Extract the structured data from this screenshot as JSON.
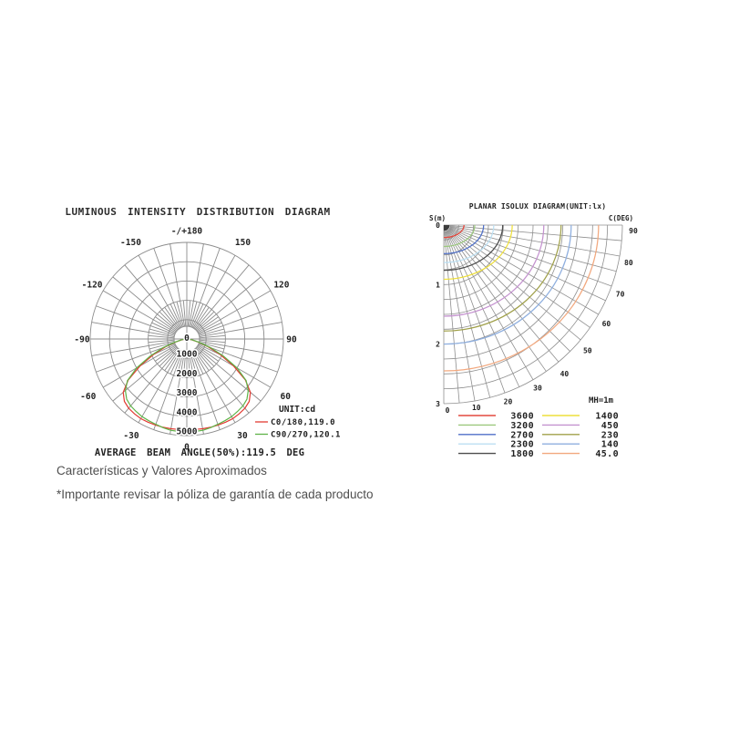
{
  "chart_data": [
    {
      "type": "polar-intensity",
      "title": "LUMINOUS INTENSITY DISTRIBUTION DIAGRAM",
      "unit_label": "UNIT:cd",
      "footer": "AVERAGE BEAM ANGLE(50%):119.5 DEG",
      "center_label": "0",
      "grid_color": "#8c8c8c",
      "ring_values": [
        1000,
        2000,
        3000,
        4000,
        5000
      ],
      "angle_step_deg": 10,
      "fine_ray_step_deg": 5,
      "angle_labels": [
        {
          "deg": 0,
          "label": "0"
        },
        {
          "deg": 30,
          "label": "30"
        },
        {
          "deg": -30,
          "label": "-30"
        },
        {
          "deg": 60,
          "label": "60"
        },
        {
          "deg": -60,
          "label": "-60"
        },
        {
          "deg": 90,
          "label": "90"
        },
        {
          "deg": -90,
          "label": "-90"
        },
        {
          "deg": 120,
          "label": "120"
        },
        {
          "deg": -120,
          "label": "-120"
        },
        {
          "deg": 150,
          "label": "150"
        },
        {
          "deg": -150,
          "label": "-150"
        },
        {
          "deg": 180,
          "label": "-/+180"
        }
      ],
      "series": [
        {
          "name": "C0/180,119.0",
          "color": "#e23b33",
          "angle_step_deg": 5,
          "symmetric": true,
          "intensity_cd": [
            4670,
            4700,
            4720,
            4730,
            4740,
            4750,
            4760,
            4730,
            4680,
            4570,
            4300,
            3700,
            2800,
            1900,
            1150,
            600,
            280,
            100,
            0
          ]
        },
        {
          "name": "C90/270,120.1",
          "color": "#5eb348",
          "angle_step_deg": 5,
          "symmetric": true,
          "intensity_cd": [
            4810,
            4805,
            4800,
            4750,
            4700,
            4670,
            4640,
            4580,
            4520,
            4400,
            4150,
            3750,
            3000,
            2100,
            1300,
            650,
            300,
            100,
            0
          ]
        }
      ]
    },
    {
      "type": "isolux-fan",
      "title": "PLANAR ISOLUX DIAGRAM(UNIT:lx)",
      "s_axis_label": "S(m)",
      "c_axis_label": "C(DEG)",
      "mh_label": "MH=1m",
      "s_ticks_m": [
        0,
        1,
        2,
        3
      ],
      "angle_ticks_deg": [
        0,
        10,
        20,
        30,
        40,
        50,
        60,
        70,
        80,
        90
      ],
      "max_s_m": 3,
      "arc_step_m": 0.25,
      "ray_step_deg": 5,
      "grid_color": "#8f8f8f",
      "isolux_curves": [
        {
          "value": "3600",
          "color": "#e4483e",
          "r0_m": 0.21,
          "r90_m": 0.34
        },
        {
          "value": "3200",
          "color": "#9cc87e",
          "r0_m": 0.36,
          "r90_m": 0.52
        },
        {
          "value": "2700",
          "color": "#4f6fc8",
          "r0_m": 0.48,
          "r90_m": 0.67
        },
        {
          "value": "2300",
          "color": "#bcdff2",
          "r0_m": 0.63,
          "r90_m": 0.84
        },
        {
          "value": "1800",
          "color": "#4d4d4d",
          "r0_m": 0.76,
          "r90_m": 0.99
        },
        {
          "value": "1400",
          "color": "#eedf3c",
          "r0_m": 0.91,
          "r90_m": 1.15
        },
        {
          "value": "450",
          "color": "#c492cf",
          "r0_m": 1.53,
          "r90_m": 1.68
        },
        {
          "value": "230",
          "color": "#a0a04a",
          "r0_m": 1.78,
          "r90_m": 1.97
        },
        {
          "value": "140",
          "color": "#8fafdf",
          "r0_m": 2.0,
          "r90_m": 2.14
        },
        {
          "value": "45.0",
          "color": "#f2a87e",
          "r0_m": 2.45,
          "r90_m": 2.6
        }
      ]
    }
  ],
  "notes": {
    "line1": "Características y Valores Aproximados",
    "line2": "*Importante revisar la póliza de garantía de cada producto"
  }
}
